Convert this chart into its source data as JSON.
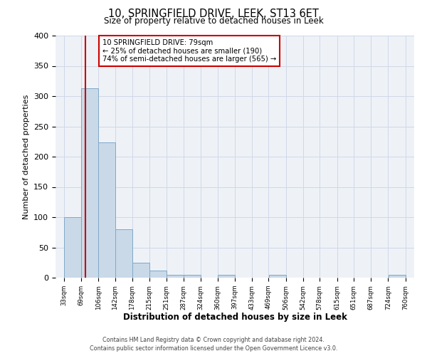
{
  "title": "10, SPRINGFIELD DRIVE, LEEK, ST13 6ET",
  "subtitle": "Size of property relative to detached houses in Leek",
  "xlabel": "Distribution of detached houses by size in Leek",
  "ylabel": "Number of detached properties",
  "bar_left_edges": [
    33,
    69,
    106,
    142,
    178,
    215,
    251,
    287,
    324,
    360,
    397,
    433,
    469,
    506,
    542,
    578,
    615,
    651,
    687,
    724
  ],
  "bar_heights": [
    100,
    313,
    224,
    80,
    25,
    12,
    5,
    5,
    0,
    5,
    0,
    0,
    5,
    0,
    0,
    0,
    0,
    0,
    0,
    5
  ],
  "bin_width": 37,
  "bar_color": "#c9d9e8",
  "bar_edge_color": "#7fa8c9",
  "tick_labels": [
    "33sqm",
    "69sqm",
    "106sqm",
    "142sqm",
    "178sqm",
    "215sqm",
    "251sqm",
    "287sqm",
    "324sqm",
    "360sqm",
    "397sqm",
    "433sqm",
    "469sqm",
    "506sqm",
    "542sqm",
    "578sqm",
    "615sqm",
    "651sqm",
    "687sqm",
    "724sqm",
    "760sqm"
  ],
  "ylim": [
    0,
    400
  ],
  "yticks": [
    0,
    50,
    100,
    150,
    200,
    250,
    300,
    350,
    400
  ],
  "property_line_x": 79,
  "annotation_line1": "10 SPRINGFIELD DRIVE: 79sqm",
  "annotation_line2": "← 25% of detached houses are smaller (190)",
  "annotation_line3": "74% of semi-detached houses are larger (565) →",
  "vline_color": "#cc0000",
  "grid_color": "#d0d8e8",
  "bg_color": "#eef2f7",
  "footer_line1": "Contains HM Land Registry data © Crown copyright and database right 2024.",
  "footer_line2": "Contains public sector information licensed under the Open Government Licence v3.0."
}
